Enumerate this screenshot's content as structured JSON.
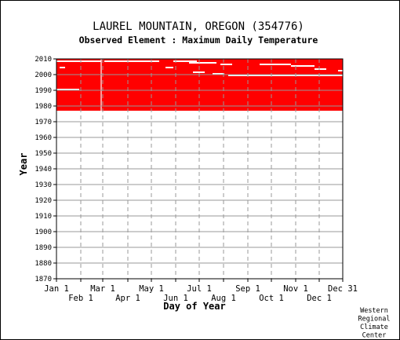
{
  "chart_data": {
    "type": "heatmap",
    "title": "LAUREL MOUNTAIN, OREGON   (354776)",
    "subtitle": "Observed Element : Maximum Daily Temperature",
    "xlabel": "Day of Year",
    "ylabel": "Year",
    "xlim": [
      1,
      366
    ],
    "ylim": [
      1870,
      2010
    ],
    "y_ticks": [
      1870,
      1880,
      1890,
      1900,
      1910,
      1920,
      1930,
      1940,
      1950,
      1960,
      1970,
      1980,
      1990,
      2000,
      2010
    ],
    "x_ticks_upper": [
      {
        "label": "Jan 1",
        "day": 1
      },
      {
        "label": "Mar 1",
        "day": 60
      },
      {
        "label": "May 1",
        "day": 122
      },
      {
        "label": "Jul 1",
        "day": 183
      },
      {
        "label": "Sep 1",
        "day": 245
      },
      {
        "label": "Nov 1",
        "day": 306
      },
      {
        "label": "Dec 31",
        "day": 366
      }
    ],
    "x_ticks_lower": [
      {
        "label": "Feb 1",
        "day": 32
      },
      {
        "label": "Apr 1",
        "day": 92
      },
      {
        "label": "Jun 1",
        "day": 153
      },
      {
        "label": "Aug 1",
        "day": 214
      },
      {
        "label": "Oct 1",
        "day": 275
      },
      {
        "label": "Dec 1",
        "day": 336
      }
    ],
    "fill_color": "#ff0000",
    "grid": true,
    "observed_regions": [
      {
        "day_start": 1,
        "day_end": 366,
        "year_start": 1977,
        "year_end": 2010
      },
      {
        "day_start": 1,
        "day_end": 58,
        "year_start": 1977,
        "year_end": 1977.6
      }
    ],
    "missing_segments": [
      {
        "year": 2008,
        "day_start": 1,
        "day_end": 58
      },
      {
        "year": 2008,
        "day_start": 62,
        "day_end": 132
      },
      {
        "year": 2008,
        "day_start": 150,
        "day_end": 180
      },
      {
        "year": 2007,
        "day_start": 170,
        "day_end": 205
      },
      {
        "year": 2006,
        "day_start": 210,
        "day_end": 225
      },
      {
        "year": 2006,
        "day_start": 260,
        "day_end": 300
      },
      {
        "year": 2005,
        "day_start": 300,
        "day_end": 330
      },
      {
        "year": 2004,
        "day_start": 5,
        "day_end": 12
      },
      {
        "year": 2004,
        "day_start": 140,
        "day_end": 150
      },
      {
        "year": 2003,
        "day_start": 330,
        "day_end": 345
      },
      {
        "year": 2002,
        "day_start": 360,
        "day_end": 366
      },
      {
        "year": 2001,
        "day_start": 175,
        "day_end": 190
      },
      {
        "year": 2000,
        "day_start": 200,
        "day_end": 215
      },
      {
        "year": 1999,
        "day_start": 220,
        "day_end": 366
      },
      {
        "year": 1990,
        "day_start": 1,
        "day_end": 30
      }
    ],
    "missing_columns": [
      {
        "day": 58,
        "year_start": 1977,
        "year_end": 2010
      }
    ],
    "credit": [
      "Western",
      "Regional",
      "Climate",
      "Center"
    ]
  }
}
